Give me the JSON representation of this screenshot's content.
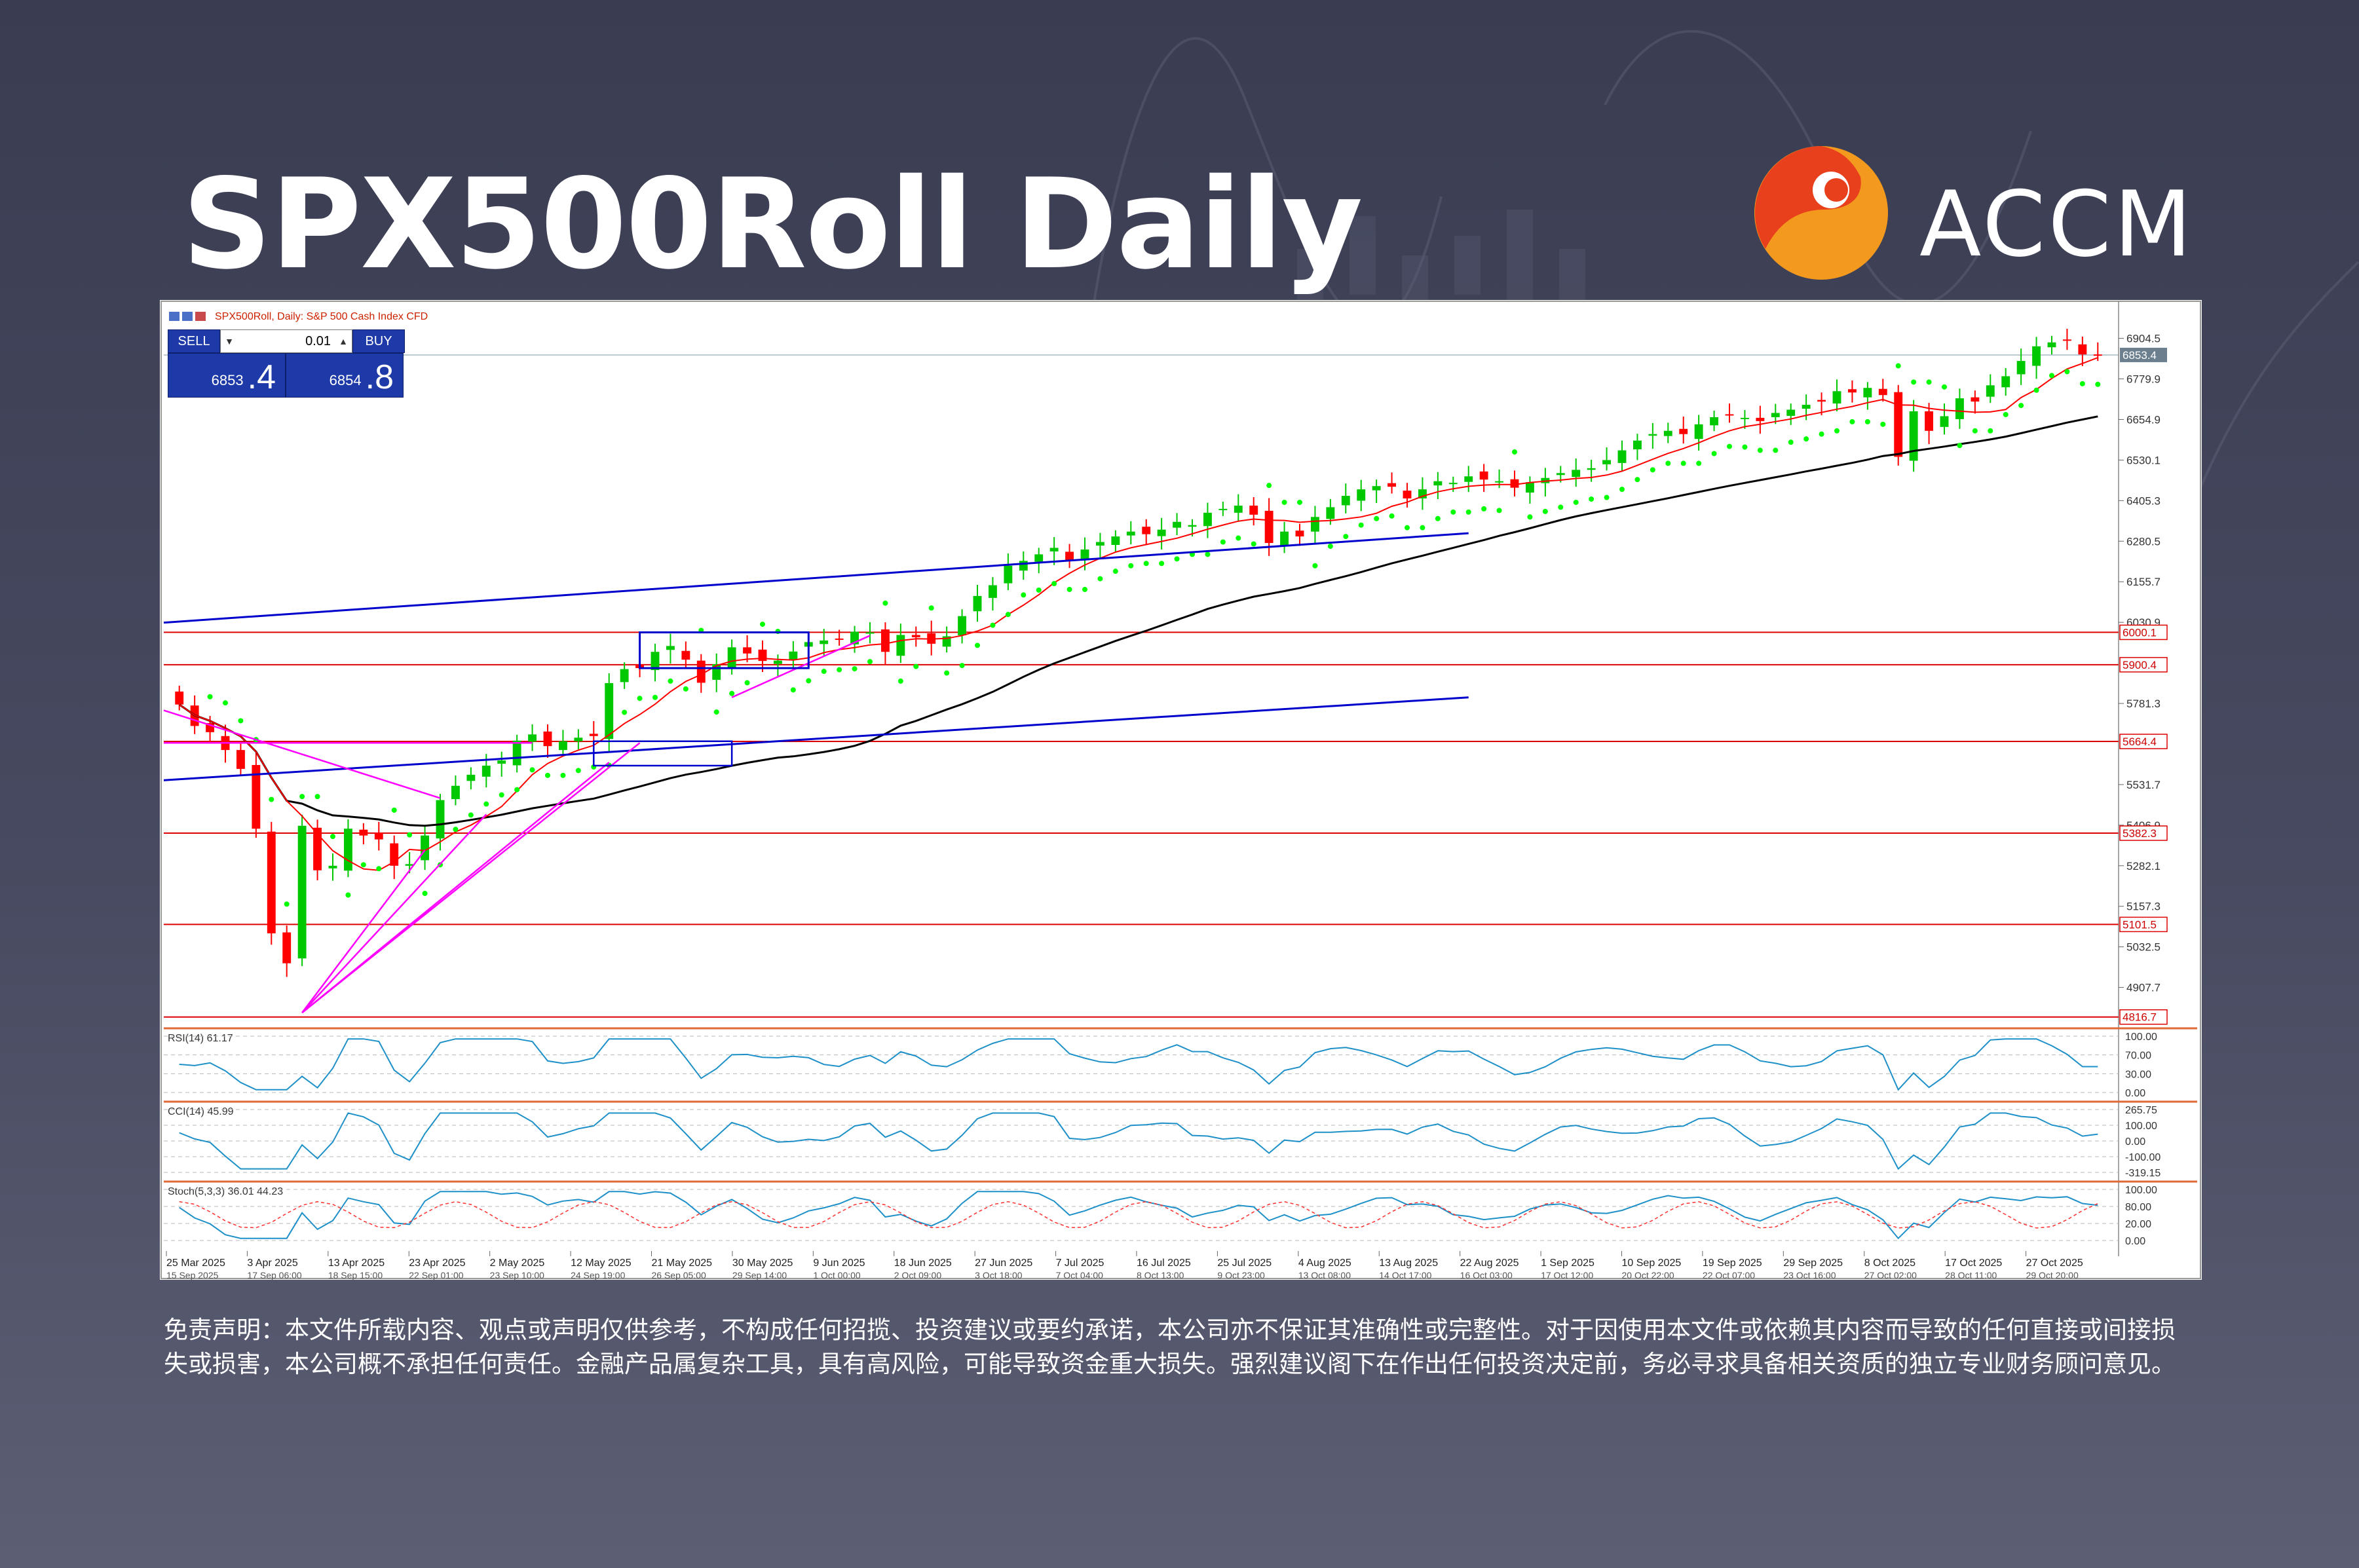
{
  "header": {
    "title": "SPX500Roll Daily",
    "logo_text": "ACCM"
  },
  "trade_panel": {
    "sell_label": "SELL",
    "buy_label": "BUY",
    "lot": "0.01",
    "sell_main": "6853",
    "sell_frac": ".4",
    "buy_main": "6854",
    "buy_frac": ".8"
  },
  "disclaimer": "免责声明：本文件所载内容、观点或声明仅供参考，不构成任何招揽、投资建议或要约承诺，本公司亦不保证其准确性或完整性。对于因使用本文件或依赖其内容而导致的任何直接或间接损失或损害，本公司概不承担任何责任。金融产品属复杂工具，具有高风险，可能导致资金重大损失。强烈建议阁下在作出任何投资决定前，务必寻求具备相关资质的独立专业财务顾问意见。",
  "colors": {
    "bull": "#00c800",
    "bear": "#ff0000",
    "sar": "#00ff00",
    "ma_fast": "#ff0000",
    "ma_slow": "#000000",
    "trendline": "#0000cc",
    "fib": "#ff00ff",
    "hline": "#dd0000",
    "osc": "#1e90c8",
    "brand_orange": "#f39a1e",
    "brand_red": "#e8401c"
  },
  "chart_data": {
    "type": "candlestick",
    "header_label": "SPX500Roll, Daily:  S&P 500 Cash Index CFD",
    "ylim": [
      4790,
      6950
    ],
    "y_ticks": [
      "6904.5",
      "6779.9",
      "6654.9",
      "6530.1",
      "6405.3",
      "6280.5",
      "6155.7",
      "6030.9",
      "5781.3",
      "5531.7",
      "5406.9",
      "5282.1",
      "5157.3",
      "5032.5",
      "4907.7"
    ],
    "price_labels": [
      {
        "value": "6853.4",
        "price": 6853.4,
        "kind": "current"
      },
      {
        "value": "6000.1",
        "price": 6000.1,
        "kind": "level"
      },
      {
        "value": "5900.4",
        "price": 5900.4,
        "kind": "level"
      },
      {
        "value": "5664.4",
        "price": 5664.4,
        "kind": "level"
      },
      {
        "value": "5382.3",
        "price": 5382.3,
        "kind": "level"
      },
      {
        "value": "5101.5",
        "price": 5101.5,
        "kind": "level"
      },
      {
        "value": "4816.7",
        "price": 4816.7,
        "kind": "level"
      }
    ],
    "x_labels_top": [
      "25 Mar 2025",
      "3 Apr 2025",
      "13 Apr 2025",
      "23 Apr 2025",
      "2 May 2025",
      "12 May 2025",
      "21 May 2025",
      "30 May 2025",
      "9 Jun 2025",
      "18 Jun 2025",
      "27 Jun 2025",
      "7 Jul 2025",
      "16 Jul 2025",
      "25 Jul 2025",
      "4 Aug 2025",
      "13 Aug 2025",
      "22 Aug 2025",
      "1 Sep 2025",
      "10 Sep 2025",
      "19 Sep 2025",
      "29 Sep 2025",
      "8 Oct 2025",
      "17 Oct 2025",
      "27 Oct 2025"
    ],
    "x_labels_bottom": [
      "15 Sep 2025",
      "17 Sep 06:00",
      "18 Sep 15:00",
      "22 Sep 01:00",
      "23 Sep 10:00",
      "24 Sep 19:00",
      "26 Sep 05:00",
      "29 Sep 14:00",
      "1 Oct 00:00",
      "2 Oct 09:00",
      "3 Oct 18:00",
      "7 Oct 04:00",
      "8 Oct 13:00",
      "9 Oct 23:00",
      "13 Oct 08:00",
      "14 Oct 17:00",
      "16 Oct 03:00",
      "17 Oct 12:00",
      "20 Oct 22:00",
      "22 Oct 07:00",
      "23 Oct 16:00",
      "27 Oct 02:00",
      "28 Oct 11:00",
      "29 Oct 20:00"
    ],
    "closes": [
      5778,
      5712,
      5693,
      5638,
      5580,
      5396,
      5074,
      4982,
      5405,
      5268,
      5282,
      5396,
      5375,
      5363,
      5282,
      5287,
      5375,
      5484,
      5528,
      5562,
      5590,
      5606,
      5667,
      5686,
      5650,
      5665,
      5676,
      5681,
      5844,
      5887,
      5890,
      5940,
      5958,
      5916,
      5845,
      5902,
      5954,
      5935,
      5912,
      5913,
      5941,
      5970,
      5975,
      5978,
      6002,
      6000,
      5940,
      5992,
      5985,
      5965,
      5988,
      6050,
      6112,
      6145,
      6205,
      6220,
      6240,
      6260,
      6222,
      6255,
      6278,
      6295,
      6310,
      6302,
      6316,
      6340,
      6330,
      6368,
      6380,
      6390,
      6362,
      6275,
      6310,
      6295,
      6355,
      6385,
      6420,
      6440,
      6450,
      6448,
      6412,
      6440,
      6465,
      6460,
      6480,
      6470,
      6465,
      6445,
      6462,
      6475,
      6490,
      6500,
      6505,
      6530,
      6560,
      6590,
      6610,
      6620,
      6610,
      6640,
      6662,
      6670,
      6660,
      6650,
      6675,
      6685,
      6700,
      6710,
      6742,
      6738,
      6752,
      6730,
      6540,
      6680,
      6620,
      6665,
      6720,
      6710,
      6760,
      6788,
      6835,
      6880,
      6892,
      6898,
      6855,
      6853
    ],
    "indicators": [
      {
        "name": "RSI(14) 61.17",
        "levels": [
          "100.00",
          "70.00",
          "30.00",
          "0.00"
        ]
      },
      {
        "name": "CCI(14) 45.99",
        "levels": [
          "265.75",
          "100.00",
          "0.00",
          "-100.00",
          "-319.15"
        ]
      },
      {
        "name": "Stoch(5,3,3) 36.01 44.23",
        "levels": [
          "100.00",
          "80.00",
          "20.00",
          "0.00"
        ]
      }
    ]
  }
}
